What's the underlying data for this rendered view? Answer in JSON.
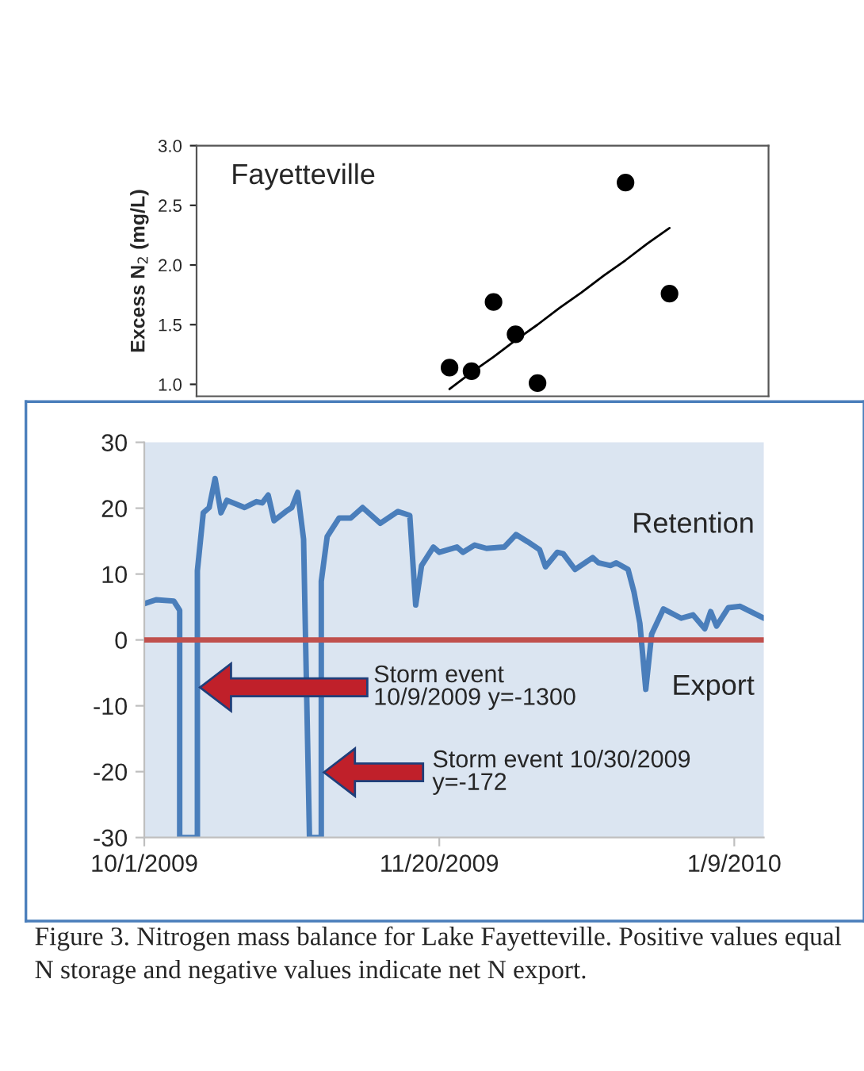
{
  "chart_data": [
    {
      "type": "scatter",
      "title": "Fayetteville",
      "ylabel": "Excess N$_{2}$ (mg/L)",
      "categories": [
        null,
        null,
        null,
        null,
        null,
        null,
        null,
        null,
        null,
        null,
        null,
        null,
        null,
        null,
        null,
        null,
        null,
        null,
        null,
        null,
        null,
        null,
        null,
        null,
        null,
        null
      ],
      "ylim": [
        0.9,
        3.0
      ],
      "yticks": [
        {
          "value": 1.0,
          "label": "1.0"
        },
        {
          "value": 1.5,
          "label": "1.5"
        },
        {
          "value": 2.0,
          "label": "2.0"
        },
        {
          "value": 2.5,
          "label": "2.5"
        },
        {
          "value": 3.0,
          "label": "3.0"
        }
      ],
      "tick_labels": "y",
      "grid": false,
      "legend": false,
      "series": [
        {
          "type": "scatter",
          "color": "#000000",
          "marker": "circle",
          "values": [
            null,
            null,
            null,
            null,
            null,
            null,
            null,
            null,
            null,
            null,
            null,
            1.14,
            1.11,
            1.69,
            1.42,
            1.01,
            null,
            null,
            null,
            2.69,
            null,
            1.76,
            null,
            null,
            null,
            null
          ]
        },
        {
          "type": "line",
          "color": "#000000",
          "marker": "none",
          "values": [
            null,
            null,
            null,
            null,
            null,
            null,
            null,
            null,
            null,
            null,
            null,
            0.96,
            1.1,
            1.23,
            1.37,
            1.5,
            1.64,
            1.77,
            1.91,
            2.04,
            2.18,
            2.31,
            null,
            null,
            null,
            null
          ]
        }
      ]
    },
    {
      "type": "line",
      "xlim": [
        "2009-10-01",
        "2010-01-14"
      ],
      "xticks": [
        {
          "value": "2009-10-01",
          "label": "10/1/2009"
        },
        {
          "value": "2009-11-20",
          "label": "11/20/2009"
        },
        {
          "value": "2010-01-09",
          "label": "1/9/2010"
        }
      ],
      "ylim": [
        -30,
        30
      ],
      "yticks": [
        -30,
        -20,
        -10,
        0,
        10,
        20,
        30
      ],
      "grid": false,
      "legend": false,
      "marker": "none",
      "line_style": "solid",
      "ref_lines": [
        {
          "axis": "y",
          "value": 0,
          "color": "#c0504d"
        }
      ],
      "annotations": [
        "Storm event\n10/9/2009 y=-1300",
        "Storm event 10/30/2009\ny=-172",
        "Retention",
        "Export",
        "Figure 3. Nitrogen mass balance for Lake Fayetteville. Positive values equal N storage and negative values indicate net N export."
      ],
      "series": [
        {
          "color": "#4a7ebb",
          "x": [
            "2009-10-01",
            "2009-10-03",
            "2009-10-06",
            "2009-10-07",
            "2009-10-07",
            "2009-10-10",
            "2009-10-10",
            "2009-10-11",
            "2009-10-12",
            "2009-10-13",
            "2009-10-14",
            "2009-10-15",
            "2009-10-18",
            "2009-10-20",
            "2009-10-21",
            "2009-10-22",
            "2009-10-23",
            "2009-10-25",
            "2009-10-26",
            "2009-10-27",
            "2009-10-28",
            "2009-10-29",
            "2009-10-31",
            "2009-10-31",
            "2009-11-01",
            "2009-11-03",
            "2009-11-05",
            "2009-11-07",
            "2009-11-10",
            "2009-11-13",
            "2009-11-15",
            "2009-11-16",
            "2009-11-17",
            "2009-11-19",
            "2009-11-20",
            "2009-11-23",
            "2009-11-24",
            "2009-11-26",
            "2009-11-28",
            "2009-12-01",
            "2009-12-03",
            "2009-12-05",
            "2009-12-07",
            "2009-12-08",
            "2009-12-10",
            "2009-12-11",
            "2009-12-13",
            "2009-12-16",
            "2009-12-17",
            "2009-12-19",
            "2009-12-20",
            "2009-12-22",
            "2009-12-23",
            "2009-12-24",
            "2009-12-25",
            "2009-12-26",
            "2009-12-28",
            "2009-12-31",
            "2010-01-02",
            "2010-01-04",
            "2010-01-05",
            "2010-01-06",
            "2010-01-08",
            "2010-01-10",
            "2010-01-14"
          ],
          "values": [
            5.5,
            6.1,
            5.9,
            4.5,
            -30,
            -30,
            10.5,
            19.3,
            20.1,
            24.5,
            19.3,
            21.2,
            20.1,
            21.0,
            20.8,
            22.0,
            18.1,
            19.5,
            20.1,
            22.4,
            15.3,
            -30,
            -30,
            8.9,
            15.7,
            18.5,
            18.5,
            20.1,
            17.7,
            19.5,
            18.9,
            5.3,
            11.3,
            14.1,
            13.3,
            14.1,
            13.3,
            14.4,
            13.9,
            14.1,
            16.0,
            14.9,
            13.7,
            11.1,
            13.3,
            13.1,
            10.7,
            12.5,
            11.7,
            11.3,
            11.7,
            10.7,
            7.3,
            2.5,
            -7.5,
            0.9,
            4.7,
            3.3,
            3.8,
            1.7,
            4.3,
            2.1,
            4.9,
            5.1,
            3.3
          ]
        }
      ]
    }
  ]
}
